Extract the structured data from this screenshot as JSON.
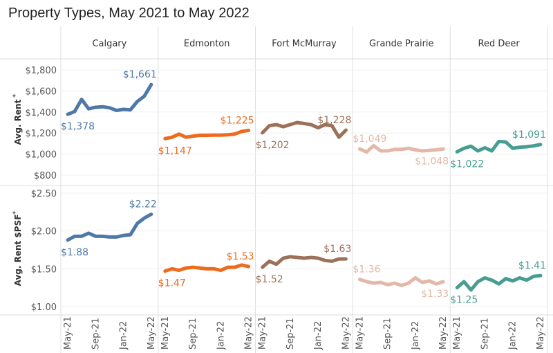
{
  "chart_data": {
    "type": "line",
    "title": "Property Types, May 2021 to May 2022",
    "panels": [
      "Calgary",
      "Edmonton",
      "Fort McMurray",
      "Grande Prairie",
      "Red Deer"
    ],
    "colors": {
      "Calgary": "#4e79a7",
      "Edmonton": "#ef6a1d",
      "Fort McMurray": "#9c7059",
      "Grande Prairie": "#e3b8a8",
      "Red Deer": "#479d91"
    },
    "x": [
      "May-21",
      "Jun-21",
      "Jul-21",
      "Aug-21",
      "Sep-21",
      "Oct-21",
      "Nov-21",
      "Dec-21",
      "Jan-22",
      "Feb-22",
      "Mar-22",
      "Apr-22",
      "May-22"
    ],
    "x_tick_labels": [
      "May-21",
      "Sep-21",
      "Jan-22",
      "May-22"
    ],
    "grid": true,
    "rows": [
      {
        "ylabel": "Avg. Rent",
        "ylim": [
          750,
          1850
        ],
        "y_ticks": [
          800,
          1000,
          1200,
          1400,
          1600,
          1800
        ],
        "y_tick_labels": [
          "$800",
          "$1,000",
          "$1,200",
          "$1,400",
          "$1,600",
          "$1,800"
        ],
        "series": [
          {
            "name": "Calgary",
            "values": [
              1378,
              1405,
              1520,
              1430,
              1445,
              1450,
              1440,
              1415,
              1425,
              1420,
              1500,
              1550,
              1661
            ],
            "start_label": "$1,378",
            "end_label": "$1,661"
          },
          {
            "name": "Edmonton",
            "values": [
              1147,
              1160,
              1190,
              1160,
              1170,
              1178,
              1178,
              1180,
              1180,
              1183,
              1190,
              1215,
              1225
            ],
            "start_label": "$1,147",
            "end_label": "$1,225"
          },
          {
            "name": "Fort McMurray",
            "values": [
              1202,
              1270,
              1280,
              1260,
              1280,
              1300,
              1290,
              1280,
              1250,
              1280,
              1270,
              1160,
              1228
            ],
            "start_label": "$1,202",
            "end_label": "$1,228"
          },
          {
            "name": "Grande Prairie",
            "values": [
              1049,
              1020,
              1080,
              1030,
              1030,
              1045,
              1045,
              1055,
              1040,
              1030,
              1035,
              1040,
              1048
            ],
            "start_label": "$1,049",
            "end_label": "$1,048"
          },
          {
            "name": "Red Deer",
            "values": [
              1022,
              1055,
              1075,
              1030,
              1060,
              1030,
              1120,
              1115,
              1055,
              1065,
              1070,
              1078,
              1091
            ],
            "start_label": "$1,022",
            "end_label": "$1,091"
          }
        ]
      },
      {
        "ylabel": "Avg. Rent $PSF",
        "ylim": [
          0.95,
          2.55
        ],
        "y_ticks": [
          1.0,
          1.5,
          2.0,
          2.5
        ],
        "y_tick_labels": [
          "$1.00",
          "$1.50",
          "$2.00",
          "$2.50"
        ],
        "series": [
          {
            "name": "Calgary",
            "values": [
              1.88,
              1.93,
              1.93,
              1.97,
              1.93,
              1.93,
              1.92,
              1.92,
              1.94,
              1.95,
              2.1,
              2.17,
              2.22
            ],
            "start_label": "$1.88",
            "end_label": "$2.22"
          },
          {
            "name": "Edmonton",
            "values": [
              1.47,
              1.5,
              1.48,
              1.51,
              1.52,
              1.51,
              1.5,
              1.5,
              1.48,
              1.52,
              1.52,
              1.55,
              1.53
            ],
            "start_label": "$1.47",
            "end_label": "$1.53"
          },
          {
            "name": "Fort McMurray",
            "values": [
              1.52,
              1.6,
              1.56,
              1.64,
              1.66,
              1.65,
              1.64,
              1.65,
              1.64,
              1.61,
              1.6,
              1.63,
              1.63
            ],
            "start_label": "$1.52",
            "end_label": "$1.63"
          },
          {
            "name": "Grande Prairie",
            "values": [
              1.36,
              1.33,
              1.31,
              1.32,
              1.29,
              1.31,
              1.28,
              1.31,
              1.38,
              1.32,
              1.34,
              1.3,
              1.33
            ],
            "start_label": "$1.36",
            "end_label": "$1.33"
          },
          {
            "name": "Red Deer",
            "values": [
              1.25,
              1.33,
              1.22,
              1.33,
              1.38,
              1.35,
              1.3,
              1.37,
              1.34,
              1.38,
              1.35,
              1.4,
              1.41
            ],
            "start_label": "$1.25",
            "end_label": "$1.41"
          }
        ]
      }
    ]
  }
}
